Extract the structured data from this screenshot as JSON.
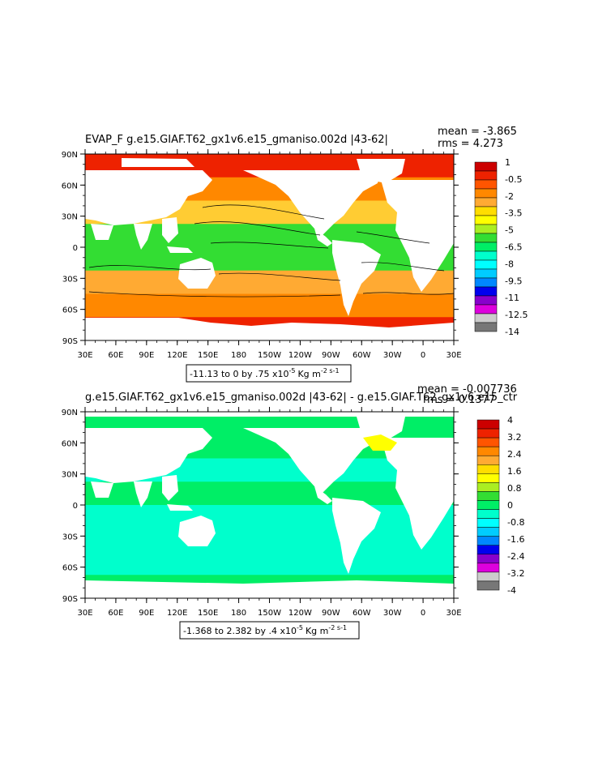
{
  "panels": [
    {
      "id": "top",
      "title": "EVAP_F g.e15.GIAF.T62_gx1v6.e15_gmaniso.002d |43-62|",
      "mean_label": "mean = -3.865",
      "rms_label": "rms = 4.273",
      "contour_info": "-11.13 to 0 by .75 x10",
      "contour_exp": "-5",
      "contour_units": "Kg m",
      "contour_units_exp": "-2 s-1",
      "legend": {
        "labels": [
          "1",
          "-0.5",
          "-2",
          "-3.5",
          "-5",
          "-6.5",
          "-8",
          "-9.5",
          "-11",
          "-12.5",
          "-14"
        ],
        "colors": [
          "#cc0000",
          "#ee2200",
          "#ff5500",
          "#ff8800",
          "#ffaa33",
          "#ffdd00",
          "#ffff00",
          "#aaee22",
          "#33dd33",
          "#00ee66",
          "#00ffcc",
          "#00ffff",
          "#00ccff",
          "#0088ff",
          "#0000ee",
          "#8800cc",
          "#dd00dd",
          "#cccccc",
          "#777777"
        ]
      },
      "ocean_gradient": [
        "#ee2200",
        "#ff8800",
        "#ffcc33",
        "#33dd33",
        "#33dd33",
        "#ffaa33",
        "#ff8800",
        "#ee2200"
      ]
    },
    {
      "id": "bottom",
      "title": "g.e15.GIAF.T62_gx1v6.e15_gmaniso.002d |43-62| - g.e15.GIAF.T62_gx1v6.e15_ctr",
      "mean_label": "mean = -0.007736",
      "rms_label": "rms = 0.1377",
      "contour_info": "-1.368 to 2.382 by .4 x10",
      "contour_exp": "-5",
      "contour_units": "Kg m",
      "contour_units_exp": "-2 s-1",
      "legend": {
        "labels": [
          "4",
          "3.2",
          "2.4",
          "1.6",
          "0.8",
          "0",
          "-0.8",
          "-1.6",
          "-2.4",
          "-3.2",
          "-4"
        ],
        "colors": [
          "#cc0000",
          "#ee2200",
          "#ff5500",
          "#ff8800",
          "#ffaa33",
          "#ffdd00",
          "#ffff00",
          "#aaee22",
          "#33dd33",
          "#00ee66",
          "#00ffcc",
          "#00ffff",
          "#00ccff",
          "#0088ff",
          "#0000ee",
          "#8800cc",
          "#dd00dd",
          "#cccccc",
          "#777777"
        ]
      },
      "ocean_gradient": [
        "#00ee66",
        "#00ee66",
        "#00ffcc",
        "#00ee66",
        "#00ffcc",
        "#00ffcc",
        "#00ffcc",
        "#00ee66"
      ]
    }
  ],
  "axes": {
    "lat_labels": [
      "90N",
      "60N",
      "30N",
      "0",
      "30S",
      "60S",
      "90S"
    ],
    "lon_labels": [
      "30E",
      "60E",
      "90E",
      "120E",
      "150E",
      "180",
      "150W",
      "120W",
      "90W",
      "60W",
      "30W",
      "0",
      "30E"
    ]
  },
  "colors": {
    "land": "#ffffff",
    "frame": "#000000"
  }
}
